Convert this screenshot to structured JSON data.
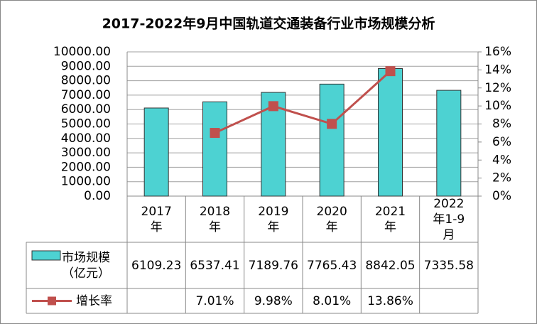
{
  "chart_data": {
    "type": "bar-line",
    "title": "2017-2022年9月中国轨道交通装备行业市场规模分析",
    "categories": [
      "2017年",
      "2018年",
      "2019年",
      "2020年",
      "2021年",
      "2022年1-9月"
    ],
    "series": [
      {
        "name": "市场规模（亿元）",
        "type": "bar",
        "color": "#4dd2d2",
        "values": [
          6109.23,
          6537.41,
          7189.76,
          7765.43,
          8842.05,
          7335.58
        ]
      },
      {
        "name": "增长率",
        "type": "line",
        "axis": "y2",
        "color": "#c0504d",
        "values": [
          null,
          7.01,
          9.98,
          8.01,
          13.86,
          null
        ],
        "value_labels": [
          null,
          "7.01%",
          "9.98%",
          "8.01%",
          "13.86%",
          null
        ]
      }
    ],
    "ylim": [
      0,
      10000
    ],
    "yticks": [
      {
        "value": 0,
        "label": "0.00"
      },
      {
        "value": 1000,
        "label": "1000.00"
      },
      {
        "value": 2000,
        "label": "2000.00"
      },
      {
        "value": 3000,
        "label": "3000.00"
      },
      {
        "value": 4000,
        "label": "4000.00"
      },
      {
        "value": 5000,
        "label": "5000.00"
      },
      {
        "value": 6000,
        "label": "6000.00"
      },
      {
        "value": 7000,
        "label": "7000.00"
      },
      {
        "value": 8000,
        "label": "8000.00"
      },
      {
        "value": 9000,
        "label": "9000.00"
      },
      {
        "value": 10000,
        "label": "10000.00"
      }
    ],
    "y2lim": [
      0,
      16
    ],
    "y2ticks": [
      {
        "value": 0,
        "label": "0%"
      },
      {
        "value": 2,
        "label": "2%"
      },
      {
        "value": 4,
        "label": "4%"
      },
      {
        "value": 6,
        "label": "6%"
      },
      {
        "value": 8,
        "label": "8%"
      },
      {
        "value": 10,
        "label": "10%"
      },
      {
        "value": 12,
        "label": "12%"
      },
      {
        "value": 14,
        "label": "14%"
      },
      {
        "value": 16,
        "label": "16%"
      }
    ],
    "grid": true
  }
}
